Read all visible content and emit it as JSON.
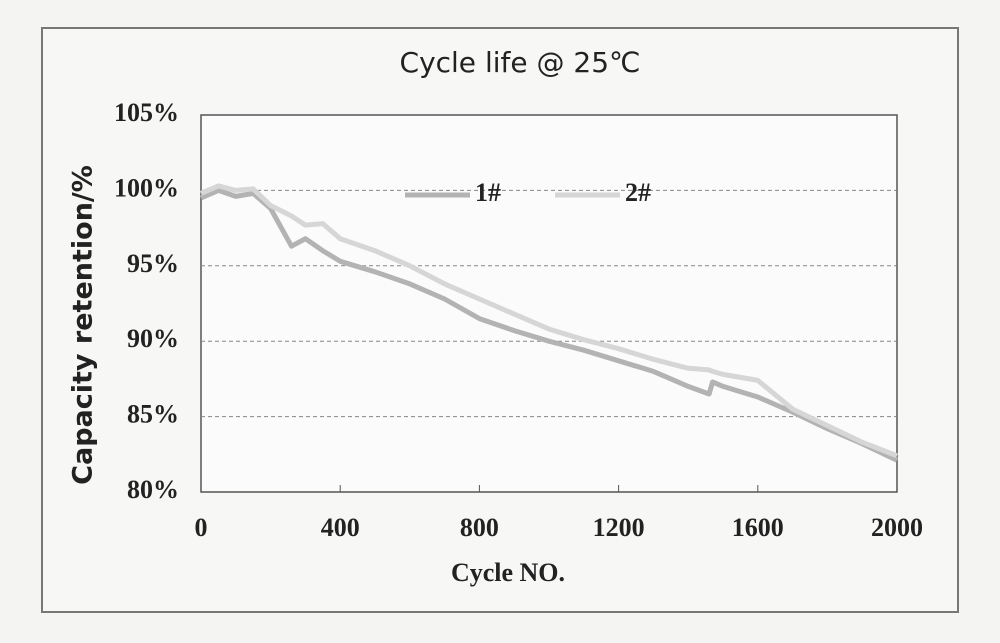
{
  "chart_data": {
    "type": "line",
    "title": "Cycle life @ 25℃",
    "x_label": "Cycle NO.",
    "y_label": "Capacity retention/%",
    "x": [
      0,
      50,
      100,
      150,
      200,
      260,
      300,
      350,
      400,
      500,
      600,
      700,
      800,
      900,
      1000,
      1100,
      1200,
      1300,
      1400,
      1460,
      1470,
      1500,
      1600,
      1700,
      1800,
      1900,
      2000
    ],
    "series": [
      {
        "name": "1#",
        "color": "#b3b3b3",
        "values": [
          99.5,
          100.0,
          99.6,
          99.8,
          98.8,
          96.3,
          96.8,
          96.0,
          95.3,
          94.6,
          93.8,
          92.8,
          91.5,
          90.7,
          90.0,
          89.4,
          88.7,
          88.0,
          87.0,
          86.5,
          87.3,
          87.0,
          86.3,
          85.3,
          84.2,
          83.2,
          82.1
        ]
      },
      {
        "name": "2#",
        "color": "#d6d6d6",
        "values": [
          99.8,
          100.3,
          100.0,
          100.1,
          99.0,
          98.3,
          97.7,
          97.8,
          96.8,
          96.0,
          95.0,
          93.8,
          92.8,
          91.8,
          90.8,
          90.1,
          89.5,
          88.8,
          88.2,
          88.1,
          88.0,
          87.8,
          87.4,
          85.5,
          84.4,
          83.3,
          82.4
        ]
      }
    ],
    "xlim": [
      0,
      2000
    ],
    "xticks": [
      0,
      400,
      800,
      1200,
      1600,
      2000
    ],
    "ylim": [
      80,
      105
    ],
    "yticks": [
      {
        "value": 80,
        "label": "80%"
      },
      {
        "value": 85,
        "label": "85%"
      },
      {
        "value": 90,
        "label": "90%"
      },
      {
        "value": 95,
        "label": "95%"
      },
      {
        "value": 100,
        "label": "100%"
      },
      {
        "value": 105,
        "label": "105%"
      }
    ],
    "grid": true,
    "legend": "top"
  }
}
